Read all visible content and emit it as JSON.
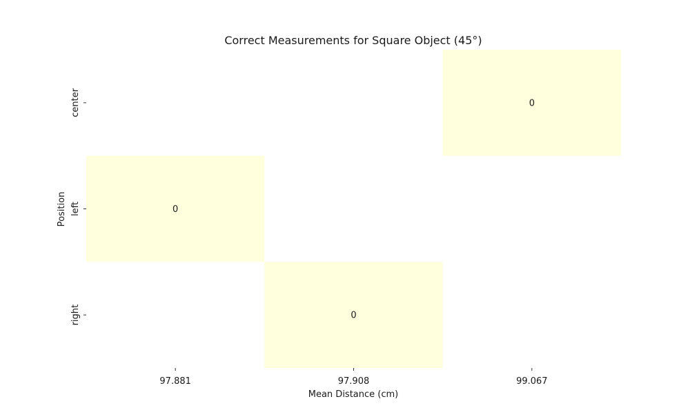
{
  "chart_data": {
    "type": "heatmap",
    "title": "Correct Measurements for Square Object (45°)",
    "xlabel": "Mean Distance (cm)",
    "ylabel": "Position",
    "x_categories": [
      "97.881",
      "97.908",
      "99.067"
    ],
    "y_categories": [
      "center",
      "left",
      "right"
    ],
    "cells": [
      {
        "x": "99.067",
        "y": "center",
        "value": 0
      },
      {
        "x": "97.881",
        "y": "left",
        "value": 0
      },
      {
        "x": "97.908",
        "y": "right",
        "value": 0
      }
    ],
    "cell_color": "#ffffdd",
    "colorbar": false,
    "annotated": true
  }
}
